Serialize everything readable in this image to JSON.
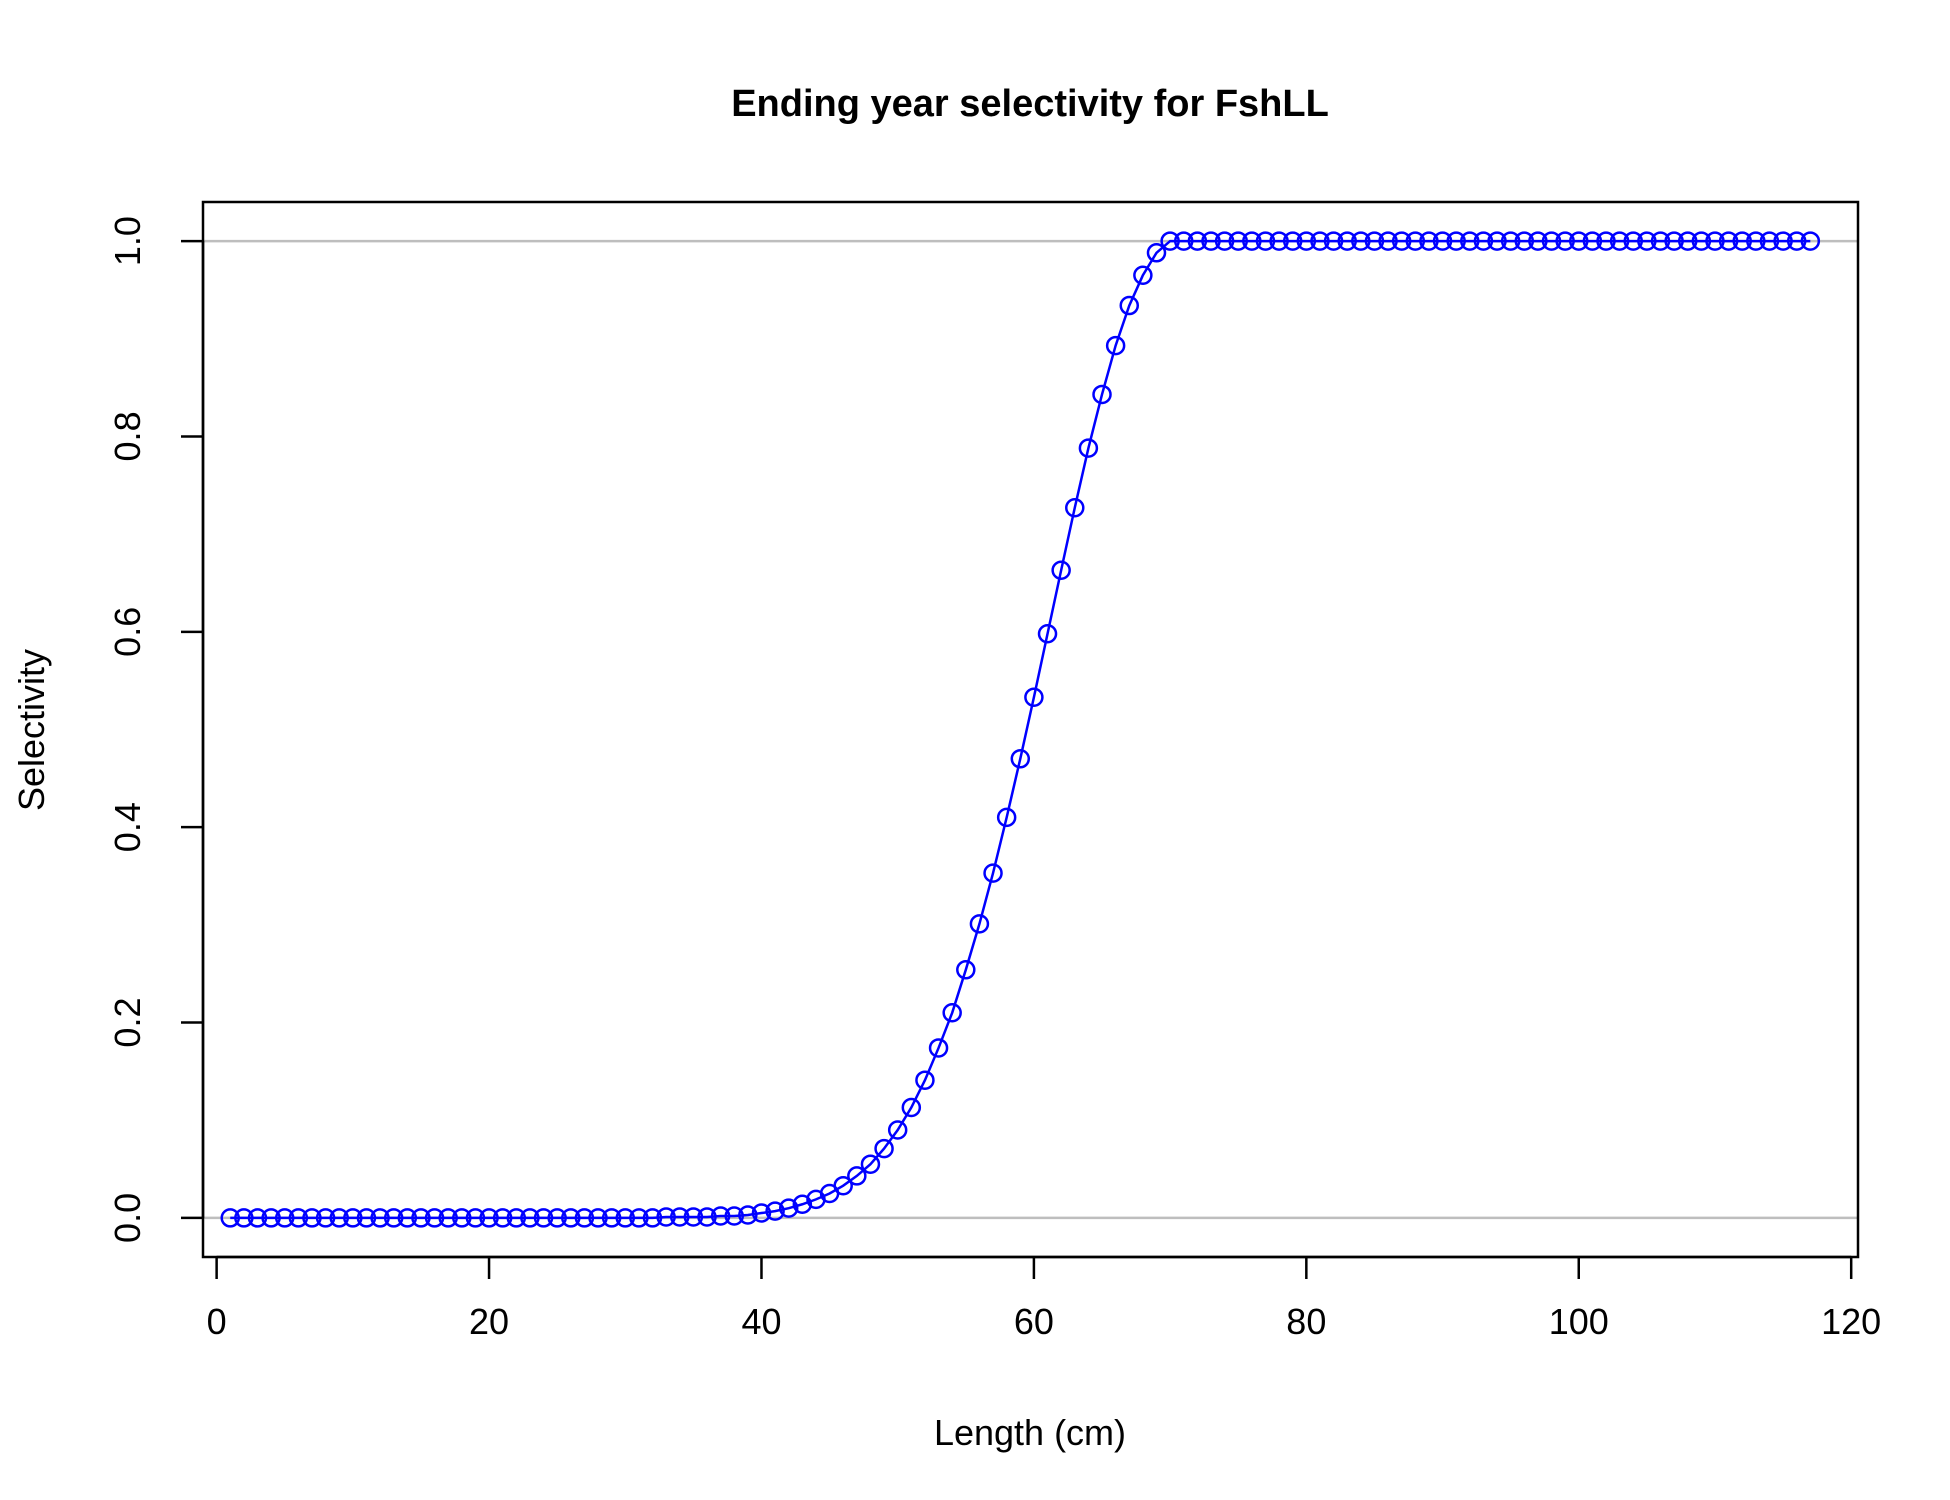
{
  "chart_data": {
    "type": "line",
    "title": "Ending year selectivity for FshLL",
    "xlabel": "Length (cm)",
    "ylabel": "Selectivity",
    "xlim": [
      -1,
      120.5
    ],
    "ylim": [
      -0.04,
      1.04
    ],
    "x_ticks": [
      "0",
      "20",
      "40",
      "60",
      "80",
      "100",
      "120"
    ],
    "y_ticks": [
      "0.0",
      "0.2",
      "0.4",
      "0.6",
      "0.8",
      "1.0"
    ],
    "reference_lines_y": [
      0,
      1
    ],
    "colors": {
      "series": "#0000ff",
      "reference": "#bebebe",
      "axes": "#000000"
    },
    "series": [
      {
        "marker": "open-circle",
        "x": [
          1,
          2,
          3,
          4,
          5,
          6,
          7,
          8,
          9,
          10,
          11,
          12,
          13,
          14,
          15,
          16,
          17,
          18,
          19,
          20,
          21,
          22,
          23,
          24,
          25,
          26,
          27,
          28,
          29,
          30,
          31,
          32,
          33,
          34,
          35,
          36,
          37,
          38,
          39,
          40,
          41,
          42,
          43,
          44,
          45,
          46,
          47,
          48,
          49,
          50,
          51,
          52,
          53,
          54,
          55,
          56,
          57,
          58,
          59,
          60,
          61,
          62,
          63,
          64,
          65,
          66,
          67,
          68,
          69,
          70,
          71,
          72,
          73,
          74,
          75,
          76,
          77,
          78,
          79,
          80,
          81,
          82,
          83,
          84,
          85,
          86,
          87,
          88,
          89,
          90,
          91,
          92,
          93,
          94,
          95,
          96,
          97,
          98,
          99,
          100,
          101,
          102,
          103,
          104,
          105,
          106,
          107,
          108,
          109,
          110,
          111,
          112,
          113,
          114,
          115,
          116,
          117
        ],
        "values": [
          0,
          0,
          0,
          0,
          0,
          0,
          0,
          0,
          0,
          0,
          0,
          0,
          0,
          0,
          0,
          0,
          0,
          0,
          0,
          0,
          0,
          0,
          0,
          0,
          0,
          0,
          0,
          0,
          0,
          0,
          0,
          0,
          0.001,
          0.001,
          0.001,
          0.001,
          0.002,
          0.002,
          0.003,
          0.005,
          0.007,
          0.01,
          0.014,
          0.019,
          0.025,
          0.033,
          0.043,
          0.055,
          0.071,
          0.09,
          0.113,
          0.141,
          0.174,
          0.21,
          0.254,
          0.301,
          0.353,
          0.41,
          0.47,
          0.533,
          0.598,
          0.663,
          0.727,
          0.788,
          0.843,
          0.893,
          0.934,
          0.965,
          0.988,
          1,
          1,
          1,
          1,
          1,
          1,
          1,
          1,
          1,
          1,
          1,
          1,
          1,
          1,
          1,
          1,
          1,
          1,
          1,
          1,
          1,
          1,
          1,
          1,
          1,
          1,
          1,
          1,
          1,
          1,
          1,
          1,
          1,
          1,
          1,
          1,
          1,
          1,
          1,
          1,
          1,
          1,
          1,
          1,
          1,
          1,
          1,
          1
        ]
      }
    ]
  }
}
